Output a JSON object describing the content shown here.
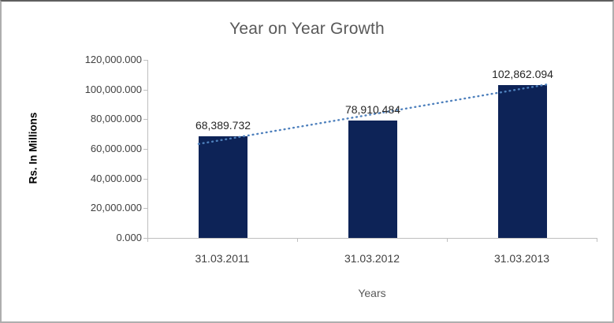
{
  "chart_data": {
    "type": "bar",
    "title": "Year on Year Growth",
    "xlabel": "Years",
    "ylabel": "Rs. In Millions",
    "categories": [
      "31.03.2011",
      "31.03.2012",
      "31.03.2013"
    ],
    "values": [
      68389.732,
      78910.484,
      102862.094
    ],
    "data_labels": [
      "68,389.732",
      "78,910.484",
      "102,862.094"
    ],
    "ytick_labels": [
      "0.000",
      "20,000.000",
      "40,000.000",
      "60,000.000",
      "80,000.000",
      "100,000.000",
      "120,000.000"
    ],
    "ylim": [
      0,
      120000
    ],
    "grid": false,
    "legend": "none",
    "trendline": {
      "type": "linear",
      "style": "dotted"
    },
    "colors": {
      "bar": "#0d2357",
      "trendline": "#4f81bd",
      "title_text": "#595959",
      "axis_text": "#404040",
      "label_text": "#262626",
      "axis_line": "#bfbfbf"
    }
  }
}
